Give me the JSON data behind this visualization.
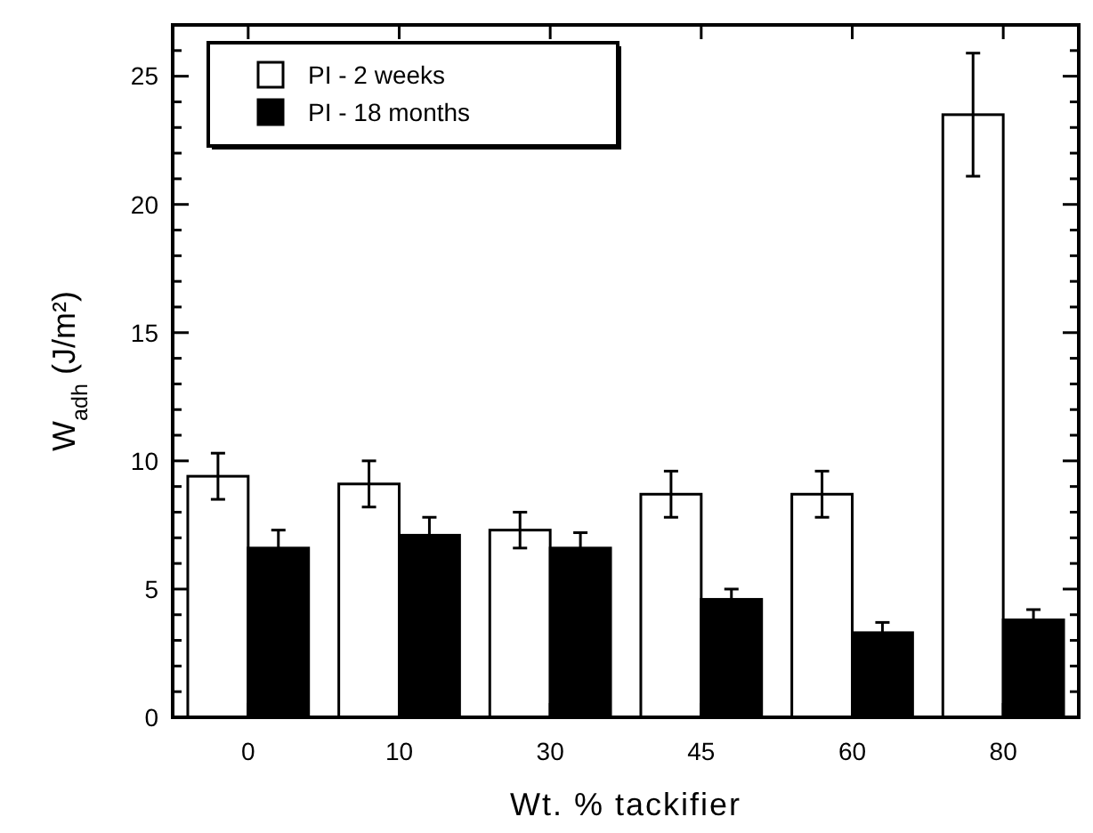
{
  "chart_data": {
    "type": "bar",
    "xlabel": "Wt. % tackifier",
    "ylabel": "W$_{adh}$ (J/m²)",
    "categories": [
      "0",
      "10",
      "30",
      "45",
      "60",
      "80"
    ],
    "series": [
      {
        "name": "PI - 2 weeks",
        "color": "#ffffff",
        "values": [
          9.4,
          9.1,
          7.3,
          8.7,
          8.7,
          23.5
        ],
        "errors": [
          0.9,
          0.9,
          0.7,
          0.9,
          0.9,
          2.4
        ]
      },
      {
        "name": "PI - 18 months",
        "color": "#000000",
        "values": [
          6.6,
          7.1,
          6.6,
          4.6,
          3.3,
          3.8
        ],
        "errors": [
          0.7,
          0.7,
          0.6,
          0.4,
          0.4,
          0.4
        ]
      }
    ],
    "ylim": [
      0,
      27
    ],
    "yticks": [
      0,
      {
        "value": 1,
        "label": null
      },
      {
        "value": 2,
        "label": null
      },
      {
        "value": 3,
        "label": null
      },
      {
        "value": 4,
        "label": null
      },
      5,
      {
        "value": 6,
        "label": null
      },
      {
        "value": 7,
        "label": null
      },
      {
        "value": 8,
        "label": null
      },
      {
        "value": 9,
        "label": null
      },
      10,
      {
        "value": 11,
        "label": null
      },
      {
        "value": 12,
        "label": null
      },
      {
        "value": 13,
        "label": null
      },
      {
        "value": 14,
        "label": null
      },
      15,
      {
        "value": 16,
        "label": null
      },
      {
        "value": 17,
        "label": null
      },
      {
        "value": 18,
        "label": null
      },
      {
        "value": 19,
        "label": null
      },
      20,
      {
        "value": 21,
        "label": null
      },
      {
        "value": 22,
        "label": null
      },
      {
        "value": 23,
        "label": null
      },
      {
        "value": 24,
        "label": null
      },
      25,
      {
        "value": 26,
        "label": null
      }
    ],
    "legend": "top left",
    "grid": false
  }
}
